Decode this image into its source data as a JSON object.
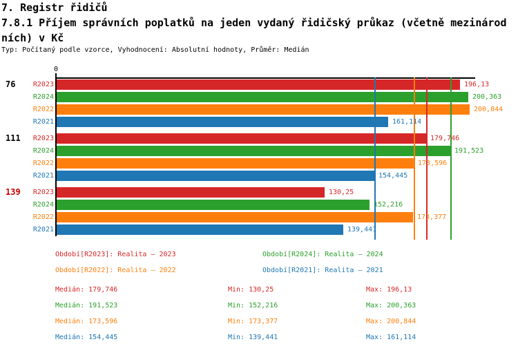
{
  "header": {
    "title": "7. Registr řidičů",
    "subtitle_line1": "7.8.1 Příjem správních poplatků na jeden vydaný řidičský průkaz (včetně mezinárod",
    "subtitle_line2": "ních) v Kč",
    "meta": "Typ: Počítaný podle vzorce, Vyhodnocení: Absolutní hodnoty, Průměr: Medián"
  },
  "colors": {
    "R2023": "#d62728",
    "R2024": "#2ca02c",
    "R2022": "#ff7f0e",
    "R2021": "#1f77b4",
    "group_highlight": "#cc0000",
    "axis": "#000000"
  },
  "chart_data": {
    "type": "bar",
    "orientation": "horizontal",
    "unit": "Kč",
    "title": "7.8.1 Příjem správních poplatků na jeden vydaný řidičský průkaz (včetně mezinárodních) v Kč",
    "axis": {
      "zero_label": "0",
      "min": 0,
      "max": 203.5,
      "grid": "median-lines-only"
    },
    "series_order": [
      "R2023",
      "R2024",
      "R2022",
      "R2021"
    ],
    "groups": [
      {
        "label": "76",
        "highlight": false,
        "bars": [
          {
            "series": "R2023",
            "value": 196.13,
            "display": "196,13"
          },
          {
            "series": "R2024",
            "value": 200.363,
            "display": "200,363"
          },
          {
            "series": "R2022",
            "value": 200.844,
            "display": "200,844"
          },
          {
            "series": "R2021",
            "value": 161.114,
            "display": "161,114"
          }
        ]
      },
      {
        "label": "111",
        "highlight": false,
        "bars": [
          {
            "series": "R2023",
            "value": 179.746,
            "display": "179,746"
          },
          {
            "series": "R2024",
            "value": 191.523,
            "display": "191,523"
          },
          {
            "series": "R2022",
            "value": 173.596,
            "display": "173,596"
          },
          {
            "series": "R2021",
            "value": 154.445,
            "display": "154,445"
          }
        ]
      },
      {
        "label": "139",
        "highlight": true,
        "bars": [
          {
            "series": "R2023",
            "value": 130.25,
            "display": "130,25"
          },
          {
            "series": "R2024",
            "value": 152.216,
            "display": "152,216"
          },
          {
            "series": "R2022",
            "value": 173.377,
            "display": "173,377"
          },
          {
            "series": "R2021",
            "value": 139.441,
            "display": "139,441"
          }
        ]
      }
    ],
    "median_lines": [
      {
        "series": "R2023",
        "value": 179.746
      },
      {
        "series": "R2024",
        "value": 191.523
      },
      {
        "series": "R2022",
        "value": 173.596
      },
      {
        "series": "R2021",
        "value": 154.445
      }
    ]
  },
  "legend": {
    "items": [
      {
        "series": "R2023",
        "text": "Období[R2023]: Realita – 2023"
      },
      {
        "series": "R2024",
        "text": "Období[R2024]: Realita – 2024"
      },
      {
        "series": "R2022",
        "text": "Období[R2022]: Realita – 2022"
      },
      {
        "series": "R2021",
        "text": "Období[R2021]: Realita – 2021"
      }
    ]
  },
  "stats": {
    "rows": [
      {
        "series": "R2023",
        "median": "Medián: 179,746",
        "min": "Min: 130,25",
        "max": "Max: 196,13"
      },
      {
        "series": "R2024",
        "median": "Medián: 191,523",
        "min": "Min: 152,216",
        "max": "Max: 200,363"
      },
      {
        "series": "R2022",
        "median": "Medián: 173,596",
        "min": "Min: 173,377",
        "max": "Max: 200,844"
      },
      {
        "series": "R2021",
        "median": "Medián: 154,445",
        "min": "Min: 139,441",
        "max": "Max: 161,114"
      }
    ]
  }
}
